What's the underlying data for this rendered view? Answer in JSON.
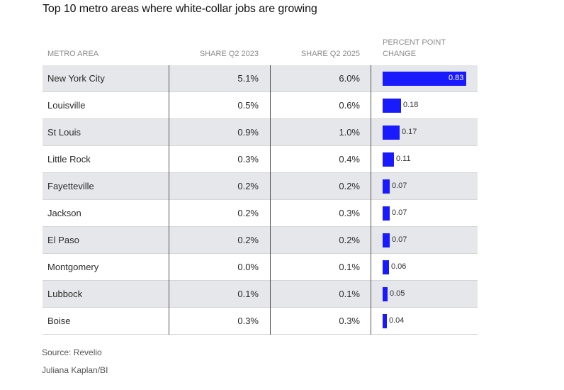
{
  "title": "Top 10 metro areas where white-collar jobs are growing",
  "headers": {
    "metro": "METRO AREA",
    "q2023": "SHARE Q2 2023",
    "q2025": "SHARE Q2 2025",
    "change": "PERCENT POINT CHANGE"
  },
  "chart_data": {
    "type": "table",
    "columns": [
      "METRO AREA",
      "SHARE Q2 2023",
      "SHARE Q2 2025",
      "PERCENT POINT CHANGE"
    ],
    "rows": [
      {
        "metro": "New York City",
        "q2023": "5.1%",
        "q2025": "6.0%",
        "change": 0.83,
        "change_label": "0.83"
      },
      {
        "metro": "Louisville",
        "q2023": "0.5%",
        "q2025": "0.6%",
        "change": 0.18,
        "change_label": "0.18"
      },
      {
        "metro": "St Louis",
        "q2023": "0.9%",
        "q2025": "1.0%",
        "change": 0.17,
        "change_label": "0.17"
      },
      {
        "metro": "Little Rock",
        "q2023": "0.3%",
        "q2025": "0.4%",
        "change": 0.11,
        "change_label": "0.11"
      },
      {
        "metro": "Fayetteville",
        "q2023": "0.2%",
        "q2025": "0.2%",
        "change": 0.07,
        "change_label": "0.07"
      },
      {
        "metro": "Jackson",
        "q2023": "0.2%",
        "q2025": "0.3%",
        "change": 0.07,
        "change_label": "0.07"
      },
      {
        "metro": "El Paso",
        "q2023": "0.2%",
        "q2025": "0.2%",
        "change": 0.07,
        "change_label": "0.07"
      },
      {
        "metro": "Montgomery",
        "q2023": "0.0%",
        "q2025": "0.1%",
        "change": 0.06,
        "change_label": "0.06"
      },
      {
        "metro": "Lubbock",
        "q2023": "0.1%",
        "q2025": "0.1%",
        "change": 0.05,
        "change_label": "0.05"
      },
      {
        "metro": "Boise",
        "q2023": "0.3%",
        "q2025": "0.3%",
        "change": 0.04,
        "change_label": "0.04"
      }
    ],
    "bar_color": "#1a1aff",
    "row_shade_color": "#e6e7ea"
  },
  "footer": {
    "source": "Source: Revelio",
    "credit": "Juliana Kaplan/BI"
  }
}
